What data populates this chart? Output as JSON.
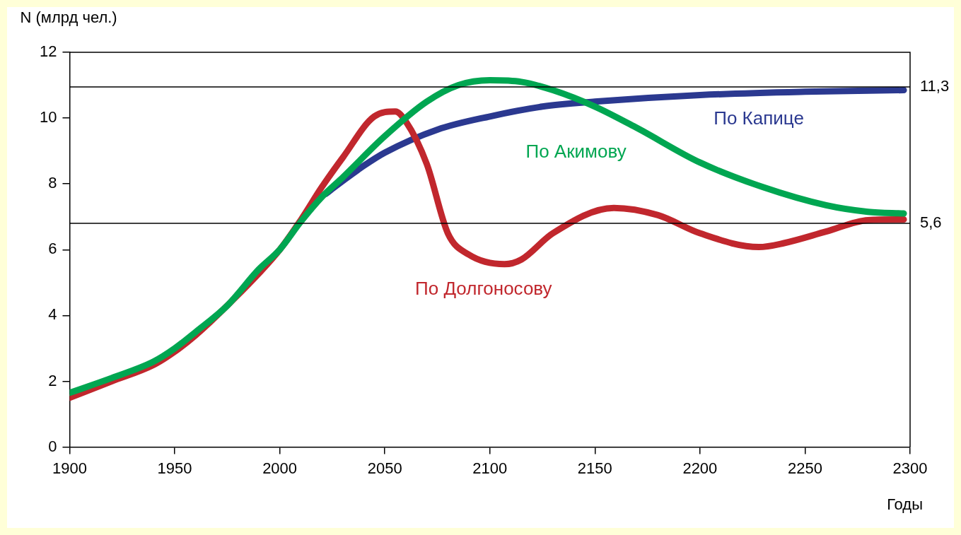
{
  "chart_data": {
    "type": "line",
    "ylabel": "N (млрд чел.)",
    "xlabel": "Годы",
    "xlim": [
      1900,
      2300
    ],
    "xticks": [
      1900,
      1950,
      2000,
      2050,
      2100,
      2150,
      2200,
      2250,
      2300
    ],
    "ylim": [
      0,
      12
    ],
    "yticks": [
      0,
      2,
      4,
      6,
      8,
      10,
      12
    ],
    "grid": false,
    "legend": false,
    "line_style": "solid",
    "marker": "none",
    "series": [
      {
        "name": "По Капице",
        "color": "#2b3990",
        "x": [
          2022,
          2025,
          2040,
          2050,
          2075,
          2100,
          2125,
          2150,
          2200,
          2250,
          2297
        ],
        "values": [
          7.7,
          7.85,
          8.55,
          8.95,
          9.65,
          10.05,
          10.35,
          10.5,
          10.7,
          10.8,
          10.85
        ]
      },
      {
        "name": "По Долгоносову",
        "color": "#c1272d",
        "x": [
          1900,
          1920,
          1940,
          1950,
          1960,
          1975,
          1990,
          2000,
          2010,
          2020,
          2030,
          2045,
          2055,
          2060,
          2070,
          2080,
          2090,
          2107,
          2115,
          2130,
          2159,
          2180,
          2200,
          2228,
          2240,
          2260,
          2280,
          2297
        ],
        "values": [
          1.5,
          2.0,
          2.5,
          2.9,
          3.4,
          4.3,
          null,
          6.0,
          6.9,
          7.9,
          8.8,
          10.05,
          10.2,
          9.9,
          8.6,
          6.5,
          5.85,
          5.56,
          5.7,
          6.5,
          7.27,
          7.05,
          6.5,
          6.08,
          6.2,
          6.55,
          6.9,
          6.92
        ]
      },
      {
        "name": "По Акимову",
        "color": "#00a651",
        "x": [
          1900,
          1920,
          1940,
          1950,
          1960,
          1975,
          1990,
          2000,
          2010,
          2020,
          2030,
          2050,
          2070,
          2085,
          2100,
          2115,
          2130,
          2150,
          2170,
          2200,
          2230,
          2260,
          2280,
          2297
        ],
        "values": [
          1.65,
          2.1,
          2.6,
          3.0,
          3.5,
          4.3,
          5.4,
          6.0,
          6.85,
          7.6,
          8.2,
          9.45,
          10.5,
          11.0,
          11.15,
          11.1,
          10.85,
          10.35,
          9.7,
          8.65,
          7.9,
          7.35,
          7.15,
          7.1
        ]
      }
    ],
    "ref_lines": [
      {
        "axis": "y",
        "value": 10.95,
        "color": "#000000"
      },
      {
        "axis": "y",
        "value": 6.8,
        "color": "#000000"
      }
    ],
    "annotations": [
      {
        "text": "11,3",
        "x": 2300,
        "y": 10.95
      },
      {
        "text": "5,6",
        "x": 2300,
        "y": 6.8
      }
    ]
  }
}
